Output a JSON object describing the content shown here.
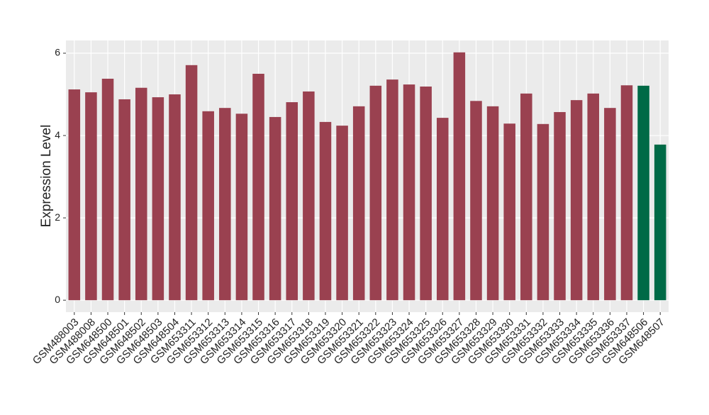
{
  "chart_data": {
    "type": "bar",
    "ylabel": "Expression Level",
    "categories": [
      "GSM488003",
      "GSM488008",
      "GSM648500",
      "GSM648501",
      "GSM648502",
      "GSM648503",
      "GSM648504",
      "GSM653311",
      "GSM653312",
      "GSM653313",
      "GSM653314",
      "GSM653315",
      "GSM653316",
      "GSM653317",
      "GSM653318",
      "GSM653319",
      "GSM653320",
      "GSM653321",
      "GSM653322",
      "GSM653323",
      "GSM653324",
      "GSM653325",
      "GSM653326",
      "GSM653327",
      "GSM653328",
      "GSM653329",
      "GSM653330",
      "GSM653331",
      "GSM653332",
      "GSM653333",
      "GSM653334",
      "GSM653335",
      "GSM653336",
      "GSM653337",
      "GSM648506",
      "GSM648507"
    ],
    "values": [
      5.12,
      5.05,
      5.38,
      4.88,
      5.16,
      4.93,
      5.0,
      5.71,
      4.59,
      4.67,
      4.53,
      5.5,
      4.45,
      4.81,
      5.07,
      4.33,
      4.24,
      4.71,
      5.21,
      5.36,
      5.24,
      5.19,
      4.43,
      6.02,
      4.84,
      4.71,
      4.29,
      5.02,
      4.28,
      4.57,
      4.86,
      5.02,
      4.67,
      5.22,
      5.21,
      3.78
    ],
    "colors": [
      "#9a4150",
      "#9a4150",
      "#9a4150",
      "#9a4150",
      "#9a4150",
      "#9a4150",
      "#9a4150",
      "#9a4150",
      "#9a4150",
      "#9a4150",
      "#9a4150",
      "#9a4150",
      "#9a4150",
      "#9a4150",
      "#9a4150",
      "#9a4150",
      "#9a4150",
      "#9a4150",
      "#9a4150",
      "#9a4150",
      "#9a4150",
      "#9a4150",
      "#9a4150",
      "#9a4150",
      "#9a4150",
      "#9a4150",
      "#9a4150",
      "#9a4150",
      "#9a4150",
      "#9a4150",
      "#9a4150",
      "#9a4150",
      "#9a4150",
      "#9a4150",
      "#006a46",
      "#006a46"
    ],
    "ylim": [
      -0.29,
      6.31
    ],
    "yticks": [
      0,
      2,
      4,
      6
    ],
    "grid": true
  }
}
